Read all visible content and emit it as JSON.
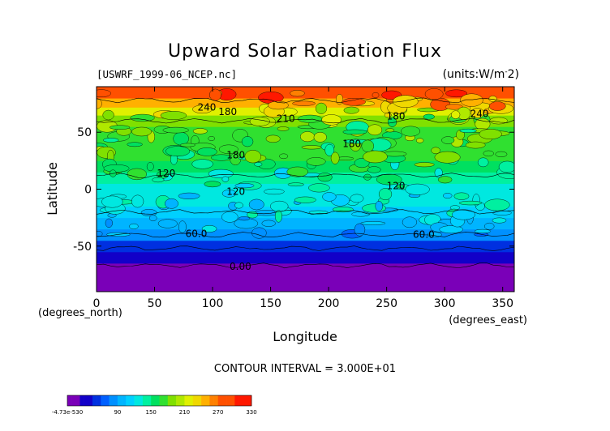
{
  "chart_data": {
    "type": "heatmap",
    "title": "Upward Solar Radiation Flux",
    "subtitle_left": "[USWRF_1999-06_NCEP.nc]",
    "subtitle_right": "(units:W/m^2)",
    "xlabel": "Longitude",
    "ylabel": "Latitude",
    "x_unit_label": "(degrees_east)",
    "y_unit_label": "(degrees_north)",
    "xlim": [
      0,
      360
    ],
    "ylim": [
      -90,
      90
    ],
    "x_ticks": [
      0,
      50,
      100,
      150,
      200,
      250,
      300,
      350
    ],
    "y_ticks": [
      -50,
      0,
      50
    ],
    "footer": "CONTOUR INTERVAL = 3.000E+01",
    "contour_interval": 30,
    "contour_labels": [
      {
        "text": "240",
        "lon": 95,
        "lat": 72
      },
      {
        "text": "180",
        "lon": 113,
        "lat": 68
      },
      {
        "text": "210",
        "lon": 163,
        "lat": 62
      },
      {
        "text": "180",
        "lon": 258,
        "lat": 64
      },
      {
        "text": "240",
        "lon": 330,
        "lat": 66
      },
      {
        "text": "180",
        "lon": 220,
        "lat": 40
      },
      {
        "text": "180",
        "lon": 120,
        "lat": 30
      },
      {
        "text": "120",
        "lon": 60,
        "lat": 14
      },
      {
        "text": "120",
        "lon": 120,
        "lat": -2
      },
      {
        "text": "120",
        "lon": 258,
        "lat": 3
      },
      {
        "text": "60.0",
        "lon": 86,
        "lat": -39
      },
      {
        "text": "60.0",
        "lon": 282,
        "lat": -40
      },
      {
        "text": "0.00",
        "lon": 124,
        "lat": -68
      }
    ],
    "latitude_profile": {
      "lat": [
        -90,
        -75,
        -65,
        -55,
        -45,
        -35,
        -25,
        -15,
        -5,
        5,
        15,
        25,
        35,
        45,
        55,
        65,
        72,
        80,
        90
      ],
      "flux": [
        0,
        0,
        20,
        45,
        70,
        95,
        110,
        120,
        125,
        135,
        150,
        165,
        165,
        170,
        180,
        195,
        230,
        275,
        300
      ]
    },
    "colorbar": {
      "tick_labels": [
        "-4.73e-530",
        "90",
        "150",
        "210",
        "270",
        "330"
      ],
      "tick_values": [
        0,
        90,
        150,
        210,
        270,
        330
      ],
      "range": [
        0,
        330
      ]
    }
  }
}
